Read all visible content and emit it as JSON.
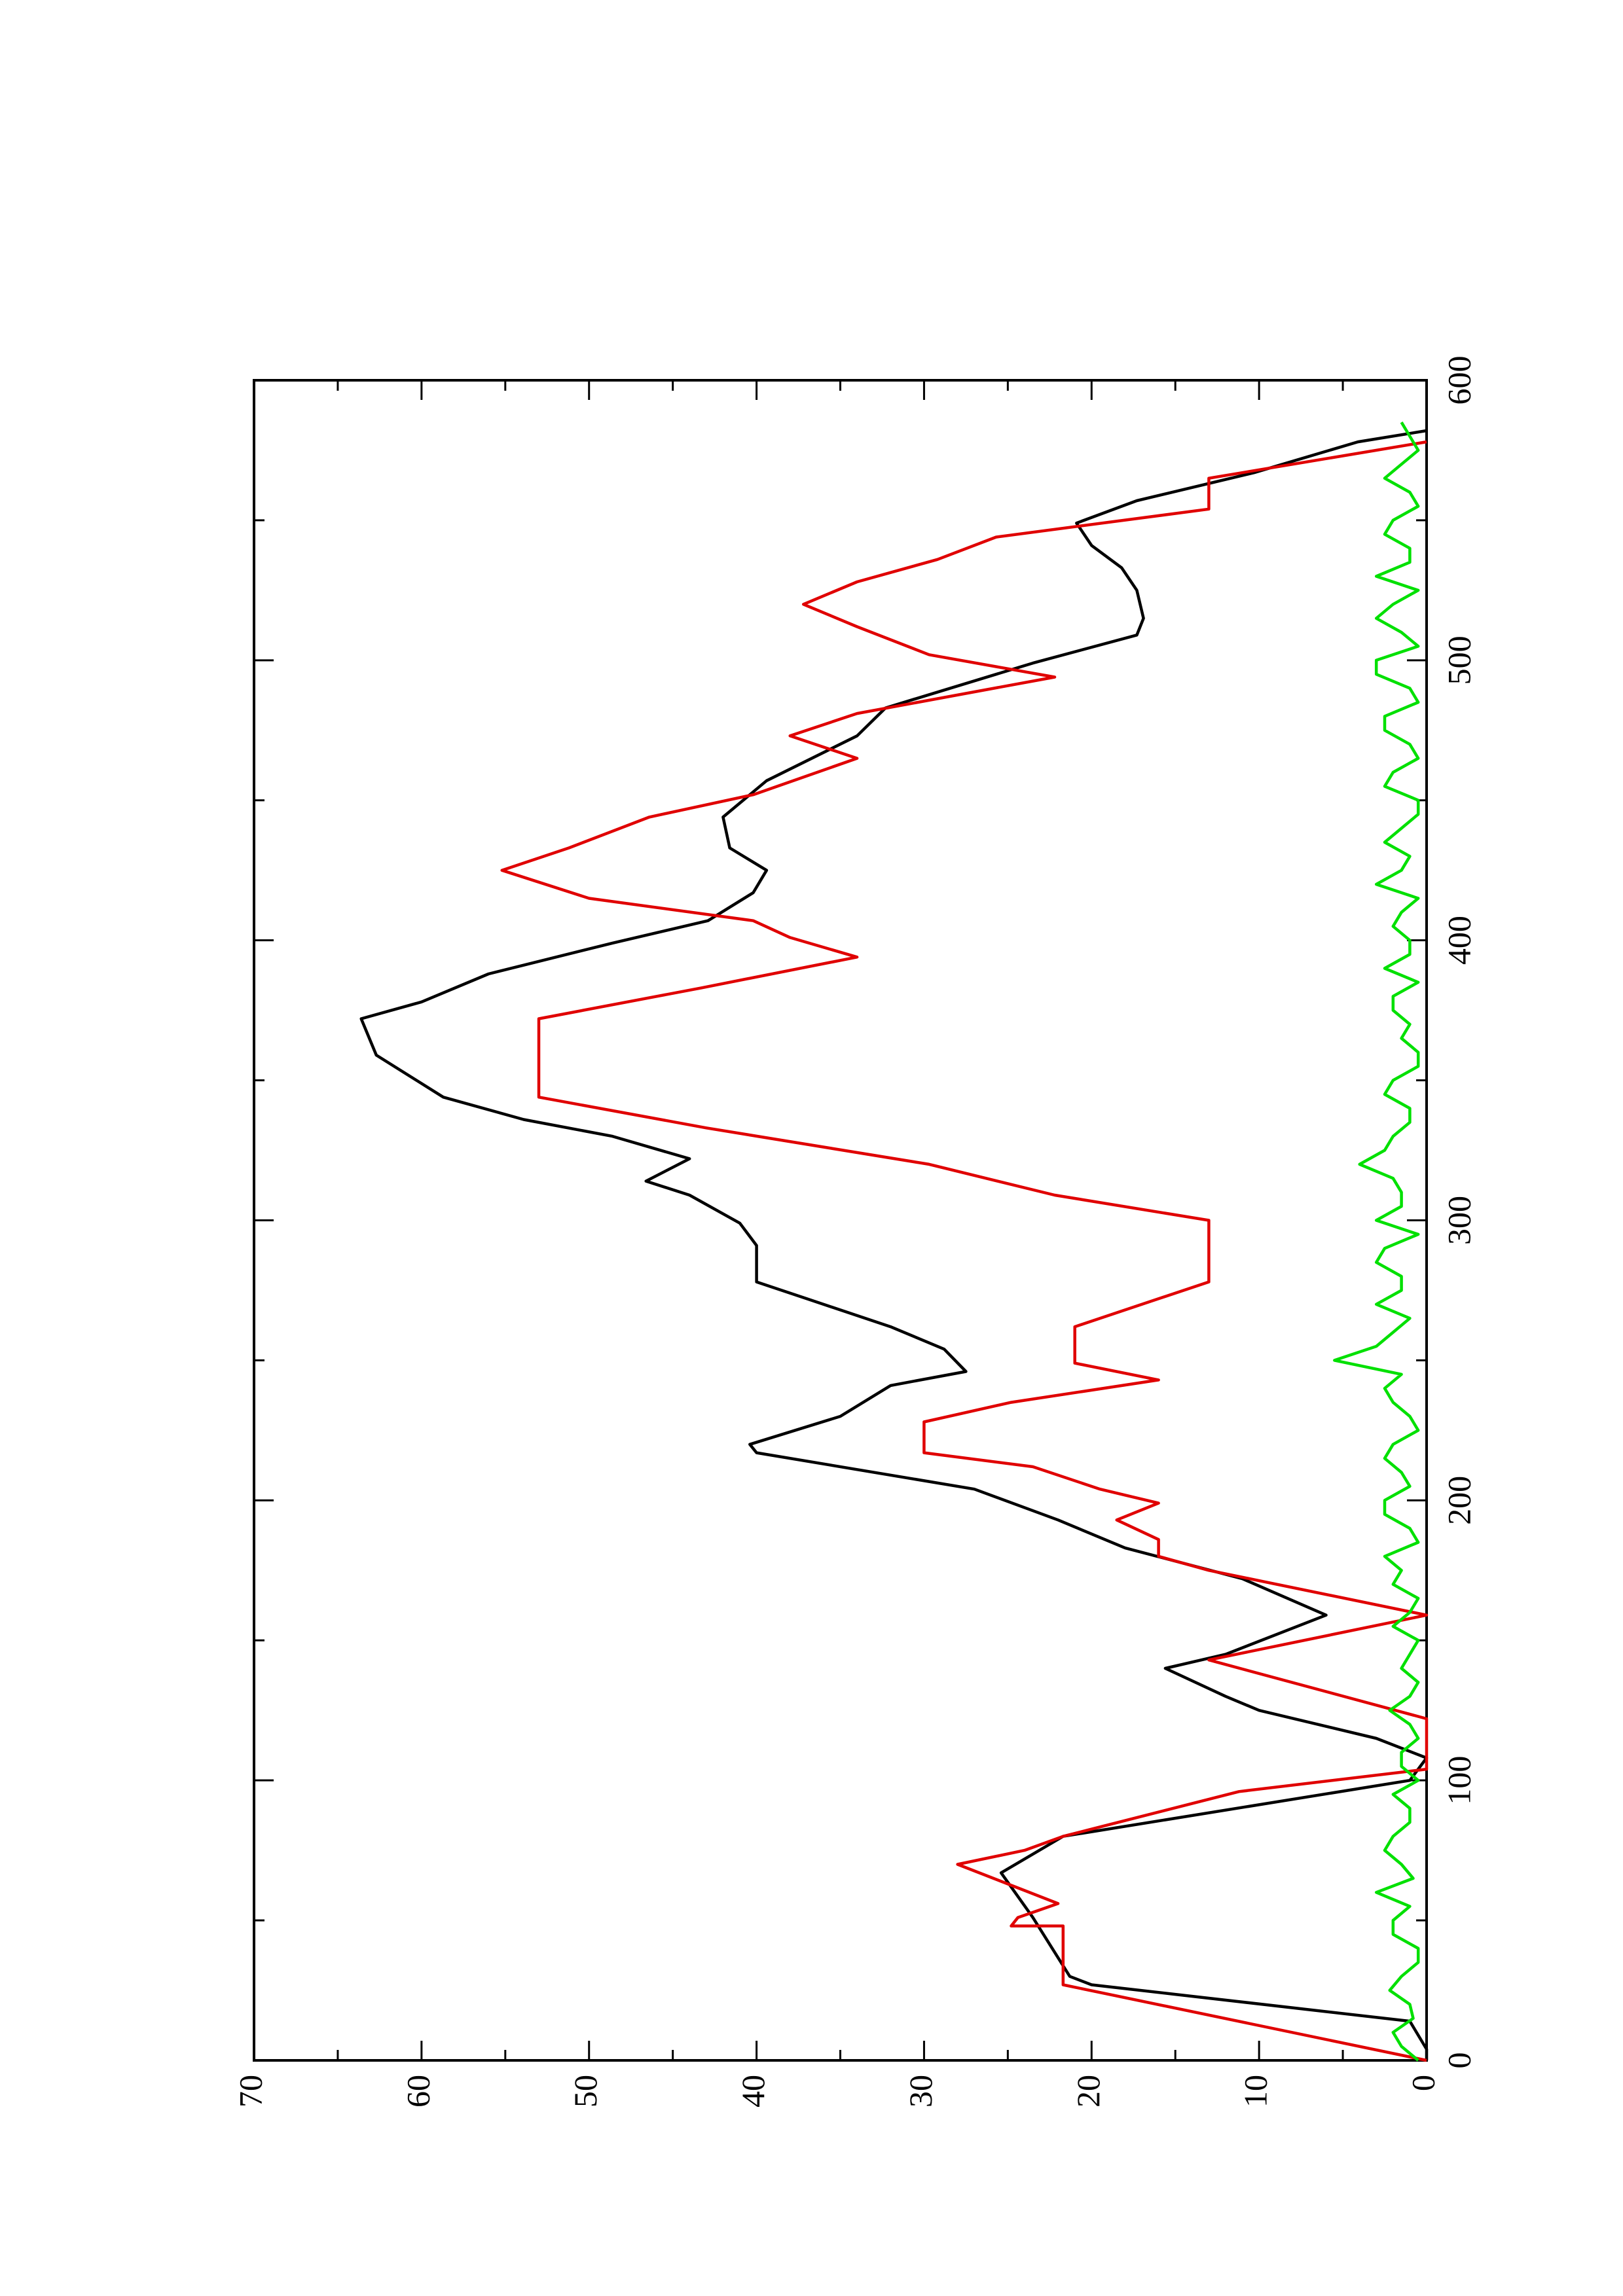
{
  "chart_data": {
    "type": "line",
    "xlim": [
      0,
      600
    ],
    "xticks": [
      0,
      100,
      200,
      300,
      400,
      500,
      600
    ],
    "xminorticks": [
      50,
      150,
      250,
      350,
      450,
      550
    ],
    "ylim": [
      0,
      70
    ],
    "yticks": [
      0,
      10,
      20,
      30,
      40,
      50,
      60,
      70
    ],
    "yminorticks": [
      5,
      15,
      25,
      35,
      45,
      55,
      65
    ],
    "series": [
      {
        "color": "#000000",
        "step": false,
        "x": [
          0,
          4,
          14,
          27,
          30,
          51,
          67,
          80,
          100,
          108,
          115,
          125,
          130,
          140,
          145,
          159,
          172,
          183,
          193,
          204,
          217,
          220,
          230,
          241,
          246,
          254,
          262,
          272,
          278,
          291,
          299,
          309,
          314,
          322,
          330,
          336,
          344,
          359,
          372,
          378,
          388,
          399,
          407,
          417,
          425,
          433,
          444,
          457,
          473,
          483,
          499,
          509,
          515,
          525,
          533,
          541,
          549,
          557,
          567,
          578,
          582
        ],
        "values": [
          0,
          0,
          1,
          20,
          21.3,
          23.5,
          25.4,
          21.7,
          1,
          0,
          3,
          10,
          12,
          15.6,
          12,
          6,
          11,
          18,
          22,
          27,
          40,
          40.4,
          35,
          32,
          27.5,
          28.8,
          32,
          37,
          40,
          40,
          41,
          44,
          46.6,
          44,
          48.6,
          53.9,
          58.7,
          62.7,
          63.6,
          60,
          56,
          48.6,
          42.9,
          40.2,
          39.4,
          41.6,
          42,
          39.4,
          34,
          32.3,
          23.5,
          17.3,
          16.9,
          17.3,
          18.2,
          20,
          20.9,
          17.3,
          10.3,
          4.1,
          0
        ]
      },
      {
        "color": "#e00000",
        "step": false,
        "x": [
          0,
          27,
          48,
          48,
          51,
          56,
          70,
          75,
          80,
          96,
          104,
          122,
          143,
          159,
          175,
          180,
          186,
          193,
          199,
          204,
          212,
          217,
          228,
          235,
          243,
          249,
          262,
          272,
          278,
          300,
          309,
          320,
          333,
          344,
          372,
          383,
          394,
          401,
          407,
          415,
          425,
          433,
          444,
          452,
          465,
          473,
          481,
          494,
          502,
          512,
          520,
          528,
          536,
          544,
          554,
          565,
          578
        ],
        "values": [
          0,
          21.7,
          21.7,
          24.8,
          24.4,
          22,
          28,
          24,
          21.7,
          11.2,
          0,
          0,
          13,
          0,
          13,
          16,
          16,
          18.5,
          16,
          19.5,
          23.5,
          30,
          30,
          24.8,
          16,
          21,
          21,
          16,
          13,
          13,
          22.2,
          29.7,
          43,
          53,
          53,
          43.3,
          34,
          38,
          40.2,
          50,
          55.2,
          51.2,
          46.4,
          40.2,
          34,
          38,
          34,
          22.2,
          29.7,
          34,
          37.2,
          34,
          29.2,
          25.7,
          13,
          13,
          0
        ]
      },
      {
        "color": "#00e000",
        "step": false,
        "x": [
          0,
          5,
          10,
          15,
          20,
          25,
          30,
          35,
          40,
          45,
          50,
          55,
          60,
          65,
          70,
          75,
          80,
          85,
          90,
          95,
          100,
          105,
          110,
          115,
          120,
          125,
          130,
          135,
          140,
          145,
          150,
          155,
          160,
          165,
          170,
          175,
          180,
          185,
          190,
          195,
          200,
          205,
          210,
          215,
          220,
          225,
          230,
          235,
          240,
          245,
          250,
          255,
          260,
          265,
          270,
          275,
          280,
          285,
          290,
          295,
          300,
          305,
          310,
          315,
          320,
          325,
          330,
          335,
          340,
          345,
          350,
          355,
          360,
          365,
          370,
          375,
          380,
          385,
          390,
          395,
          400,
          405,
          410,
          415,
          420,
          425,
          430,
          435,
          440,
          445,
          450,
          455,
          460,
          465,
          470,
          475,
          480,
          485,
          490,
          495,
          500,
          505,
          510,
          515,
          520,
          525,
          530,
          535,
          540,
          545,
          550,
          555,
          560,
          565,
          570,
          575,
          580,
          585
        ],
        "values": [
          0.5,
          1.5,
          2,
          0.8,
          1,
          2.2,
          1.5,
          0.5,
          0.5,
          2,
          2,
          1,
          3,
          0.8,
          1.5,
          2.5,
          2,
          1,
          1,
          2,
          0.5,
          1.5,
          1.5,
          0.5,
          1,
          2.2,
          1,
          0.5,
          1.5,
          1,
          0.5,
          2,
          1,
          0.5,
          2,
          1.5,
          2.5,
          0.5,
          1,
          2.5,
          2.5,
          1,
          1.5,
          2.5,
          2,
          0.5,
          1,
          2,
          2.5,
          1.5,
          5.5,
          3,
          2,
          1,
          3,
          1.5,
          1.5,
          3,
          2.5,
          0.5,
          3,
          1.5,
          1.5,
          2,
          4,
          2.5,
          2,
          1,
          1,
          2.5,
          2,
          0.5,
          0.5,
          1.5,
          1,
          2,
          2,
          0.5,
          2.5,
          1,
          1,
          2,
          1.5,
          0.5,
          3,
          1.5,
          1,
          2.5,
          1.5,
          0.5,
          0.5,
          2.5,
          2,
          0.5,
          1,
          2.5,
          2.5,
          0.5,
          1,
          3,
          3,
          0.5,
          1.5,
          3,
          2,
          0.5,
          3,
          1,
          1,
          2.5,
          2,
          0.5,
          1,
          2.5,
          1.5,
          0.5,
          1,
          1.5
        ]
      }
    ]
  }
}
